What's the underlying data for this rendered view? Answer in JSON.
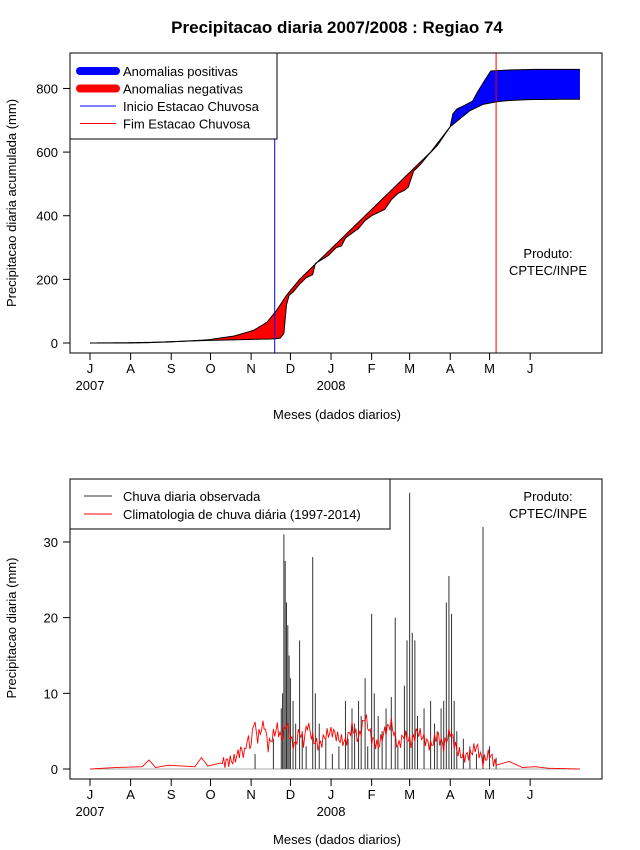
{
  "chart_data": [
    {
      "type": "area",
      "title": "Precipitacao diaria 2007/2008 : Regiao 74",
      "xlabel": "Meses (dados diarios)",
      "ylabel": "Precipitacao diaria acumulada (mm)",
      "xlim": [
        0,
        396
      ],
      "ylim": [
        0,
        880
      ],
      "yticks": [
        0,
        200,
        400,
        600,
        800
      ],
      "month_ticks": [
        {
          "day": 0,
          "label": "J"
        },
        {
          "day": 31,
          "label": "A"
        },
        {
          "day": 62,
          "label": "S"
        },
        {
          "day": 92,
          "label": "O"
        },
        {
          "day": 123,
          "label": "N"
        },
        {
          "day": 153,
          "label": "D"
        },
        {
          "day": 184,
          "label": "J"
        },
        {
          "day": 215,
          "label": "F"
        },
        {
          "day": 244,
          "label": "M"
        },
        {
          "day": 275,
          "label": "A"
        },
        {
          "day": 305,
          "label": "M"
        },
        {
          "day": 336,
          "label": "J"
        }
      ],
      "year_labels": [
        {
          "day": 0,
          "label": "2007"
        },
        {
          "day": 184,
          "label": "2008"
        }
      ],
      "legend": {
        "placement": "top-left",
        "entries": [
          {
            "label": "Anomalias positivas",
            "color": "#0000ff",
            "style": "thick"
          },
          {
            "label": "Anomalias negativas",
            "color": "#ff0000",
            "style": "thick"
          },
          {
            "label": "Inicio Estacao Chuvosa",
            "color": "#0000ff",
            "style": "thin"
          },
          {
            "label": "Fim Estacao Chuvosa",
            "color": "#ff0000",
            "style": "thin"
          }
        ]
      },
      "annotation": [
        "Produto:",
        "CPTEC/INPE"
      ],
      "inicio_estacao_day": 141,
      "fim_estacao_day": 310,
      "climatology_cumulative": [
        [
          0,
          0
        ],
        [
          30,
          1
        ],
        [
          60,
          3
        ],
        [
          90,
          10
        ],
        [
          110,
          22
        ],
        [
          125,
          40
        ],
        [
          135,
          65
        ],
        [
          142,
          100
        ],
        [
          150,
          150
        ],
        [
          160,
          200
        ],
        [
          175,
          260
        ],
        [
          190,
          320
        ],
        [
          205,
          380
        ],
        [
          215,
          420
        ],
        [
          230,
          480
        ],
        [
          245,
          540
        ],
        [
          260,
          600
        ],
        [
          275,
          680
        ],
        [
          290,
          730
        ],
        [
          300,
          750
        ],
        [
          310,
          758
        ],
        [
          320,
          762
        ],
        [
          335,
          765
        ],
        [
          360,
          766
        ],
        [
          374,
          766
        ]
      ],
      "observed_cumulative": [
        [
          0,
          0
        ],
        [
          30,
          0
        ],
        [
          45,
          1
        ],
        [
          60,
          4
        ],
        [
          75,
          6
        ],
        [
          90,
          8
        ],
        [
          100,
          9
        ],
        [
          110,
          10
        ],
        [
          120,
          11
        ],
        [
          130,
          12
        ],
        [
          135,
          12
        ],
        [
          140,
          13
        ],
        [
          145,
          15
        ],
        [
          148,
          30
        ],
        [
          150,
          120
        ],
        [
          152,
          150
        ],
        [
          155,
          160
        ],
        [
          160,
          185
        ],
        [
          165,
          205
        ],
        [
          170,
          215
        ],
        [
          172,
          250
        ],
        [
          178,
          265
        ],
        [
          182,
          275
        ],
        [
          188,
          300
        ],
        [
          192,
          305
        ],
        [
          195,
          330
        ],
        [
          200,
          345
        ],
        [
          205,
          360
        ],
        [
          210,
          385
        ],
        [
          215,
          400
        ],
        [
          220,
          410
        ],
        [
          225,
          420
        ],
        [
          230,
          450
        ],
        [
          235,
          470
        ],
        [
          240,
          480
        ],
        [
          243,
          490
        ],
        [
          247,
          540
        ],
        [
          252,
          560
        ],
        [
          258,
          590
        ],
        [
          265,
          620
        ],
        [
          270,
          650
        ],
        [
          275,
          680
        ],
        [
          277,
          720
        ],
        [
          280,
          735
        ],
        [
          285,
          745
        ],
        [
          292,
          760
        ],
        [
          296,
          790
        ],
        [
          302,
          830
        ],
        [
          306,
          855
        ],
        [
          320,
          858
        ],
        [
          340,
          860
        ],
        [
          374,
          860
        ]
      ]
    },
    {
      "type": "bar",
      "xlabel": "Meses (dados diarios)",
      "ylabel": "Precipitacao diaria (mm)",
      "xlim": [
        0,
        396
      ],
      "ylim": [
        0,
        37
      ],
      "yticks": [
        0,
        10,
        20,
        30
      ],
      "month_ticks": [
        {
          "day": 0,
          "label": "J"
        },
        {
          "day": 31,
          "label": "A"
        },
        {
          "day": 62,
          "label": "S"
        },
        {
          "day": 92,
          "label": "O"
        },
        {
          "day": 123,
          "label": "N"
        },
        {
          "day": 153,
          "label": "D"
        },
        {
          "day": 184,
          "label": "J"
        },
        {
          "day": 215,
          "label": "F"
        },
        {
          "day": 244,
          "label": "M"
        },
        {
          "day": 275,
          "label": "A"
        },
        {
          "day": 305,
          "label": "M"
        },
        {
          "day": 336,
          "label": "J"
        }
      ],
      "year_labels": [
        {
          "day": 0,
          "label": "2007"
        },
        {
          "day": 184,
          "label": "2008"
        }
      ],
      "legend": {
        "placement": "top-left",
        "entries": [
          {
            "label": "Chuva diaria observada",
            "color": "#333333"
          },
          {
            "label": "Climatologia de chuva diária (1997-2014)",
            "color": "#ff0000"
          }
        ]
      },
      "annotation": [
        "Produto:",
        "CPTEC/INPE"
      ],
      "observed_daily": [
        [
          126,
          2
        ],
        [
          140,
          4
        ],
        [
          146,
          8
        ],
        [
          147,
          10
        ],
        [
          148,
          31
        ],
        [
          149,
          27.5
        ],
        [
          150,
          22
        ],
        [
          151,
          19
        ],
        [
          152,
          15
        ],
        [
          153,
          12
        ],
        [
          155,
          9
        ],
        [
          157,
          6
        ],
        [
          160,
          17
        ],
        [
          162,
          5
        ],
        [
          165,
          3
        ],
        [
          170,
          28
        ],
        [
          172,
          10
        ],
        [
          175,
          6
        ],
        [
          180,
          4
        ],
        [
          185,
          2
        ],
        [
          190,
          3
        ],
        [
          195,
          9
        ],
        [
          197,
          4
        ],
        [
          200,
          8
        ],
        [
          202,
          6
        ],
        [
          205,
          9
        ],
        [
          207,
          7
        ],
        [
          210,
          12
        ],
        [
          212,
          3
        ],
        [
          215,
          20.5
        ],
        [
          217,
          10
        ],
        [
          220,
          7
        ],
        [
          223,
          5
        ],
        [
          226,
          8
        ],
        [
          230,
          9.5
        ],
        [
          233,
          20
        ],
        [
          235,
          3
        ],
        [
          240,
          11
        ],
        [
          242,
          17
        ],
        [
          244,
          36.5
        ],
        [
          246,
          18
        ],
        [
          248,
          17
        ],
        [
          250,
          7
        ],
        [
          255,
          8
        ],
        [
          260,
          9
        ],
        [
          263,
          6
        ],
        [
          265,
          5
        ],
        [
          268,
          8
        ],
        [
          270,
          9
        ],
        [
          272,
          22
        ],
        [
          274,
          25.5
        ],
        [
          276,
          20.5
        ],
        [
          278,
          9
        ],
        [
          280,
          5
        ],
        [
          285,
          4
        ],
        [
          290,
          3
        ],
        [
          295,
          2
        ],
        [
          300,
          32
        ],
        [
          305,
          3
        ],
        [
          310,
          1.5
        ]
      ],
      "climatology_daily": [
        [
          0,
          0
        ],
        [
          20,
          0.2
        ],
        [
          40,
          0.3
        ],
        [
          45,
          1.2
        ],
        [
          50,
          0.2
        ],
        [
          60,
          0.5
        ],
        [
          80,
          0.3
        ],
        [
          85,
          1.5
        ],
        [
          90,
          0.4
        ],
        [
          100,
          0.8
        ],
        [
          110,
          1.2
        ],
        [
          115,
          2.5
        ],
        [
          118,
          2
        ],
        [
          120,
          4
        ],
        [
          123,
          3
        ],
        [
          125,
          6.5
        ],
        [
          128,
          4
        ],
        [
          130,
          5
        ],
        [
          133,
          6
        ],
        [
          136,
          3
        ],
        [
          140,
          4.5
        ],
        [
          143,
          5.5
        ],
        [
          146,
          4
        ],
        [
          150,
          6
        ],
        [
          153,
          4
        ],
        [
          156,
          3
        ],
        [
          160,
          5
        ],
        [
          163,
          3.5
        ],
        [
          166,
          6
        ],
        [
          170,
          4
        ],
        [
          175,
          3
        ],
        [
          180,
          4.5
        ],
        [
          185,
          5
        ],
        [
          190,
          4
        ],
        [
          195,
          3.5
        ],
        [
          200,
          5.5
        ],
        [
          205,
          4
        ],
        [
          210,
          7
        ],
        [
          215,
          4
        ],
        [
          220,
          3
        ],
        [
          225,
          5
        ],
        [
          230,
          6
        ],
        [
          235,
          3
        ],
        [
          240,
          4.5
        ],
        [
          245,
          3.5
        ],
        [
          250,
          5
        ],
        [
          255,
          4
        ],
        [
          260,
          3
        ],
        [
          265,
          4.5
        ],
        [
          270,
          3
        ],
        [
          275,
          5
        ],
        [
          280,
          2.5
        ],
        [
          285,
          1.5
        ],
        [
          290,
          2
        ],
        [
          295,
          3
        ],
        [
          300,
          1
        ],
        [
          305,
          2
        ],
        [
          310,
          0.5
        ],
        [
          320,
          1
        ],
        [
          330,
          0.2
        ],
        [
          340,
          0.3
        ],
        [
          350,
          0.1
        ],
        [
          374,
          0
        ]
      ]
    }
  ]
}
